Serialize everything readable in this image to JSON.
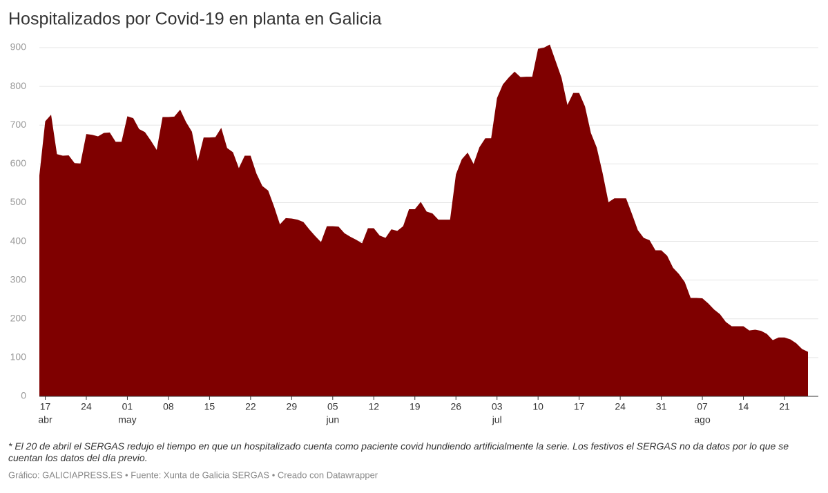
{
  "chart_data": {
    "type": "area",
    "title": "Hospitalizados por Covid-19 en planta en Galicia",
    "note": "* El 20 de abril el SERGAS redujo el tiempo en que un hospitalizado cuenta como paciente covid hundiendo artificialmente la serie. Los festivos el SERGAS no da datos por lo que se cuentan los datos del día previo.",
    "credit": "Gráfico: GALICIAPRESS.ES • Fuente: Xunta de Galicia SERGAS • Creado con Datawrapper",
    "color": "#7f0000",
    "ylim": [
      0,
      900
    ],
    "yticks": [
      0,
      100,
      200,
      300,
      400,
      500,
      600,
      700,
      800,
      900
    ],
    "grid": true,
    "categories": [
      null,
      "17",
      null,
      null,
      null,
      null,
      null,
      null,
      "24",
      null,
      null,
      null,
      null,
      null,
      null,
      "01",
      null,
      null,
      null,
      null,
      null,
      null,
      "08",
      null,
      null,
      null,
      null,
      null,
      null,
      "15",
      null,
      null,
      null,
      null,
      null,
      null,
      "22",
      null,
      null,
      null,
      null,
      null,
      null,
      "29",
      null,
      null,
      null,
      null,
      null,
      null,
      "05",
      null,
      null,
      null,
      null,
      null,
      null,
      "12",
      null,
      null,
      null,
      null,
      null,
      null,
      "19",
      null,
      null,
      null,
      null,
      null,
      null,
      "26",
      null,
      null,
      null,
      null,
      null,
      null,
      "03",
      null,
      null,
      null,
      null,
      null,
      null,
      "10",
      null,
      null,
      null,
      null,
      null,
      null,
      "17",
      null,
      null,
      null,
      null,
      null,
      null,
      "24",
      null,
      null,
      null,
      null,
      null,
      null,
      "31",
      null,
      null,
      null,
      null,
      null,
      null,
      "07",
      null,
      null,
      null,
      null,
      null,
      null,
      "14",
      null,
      null,
      null,
      null,
      null,
      null,
      "21",
      null,
      null,
      null,
      null
    ],
    "months": [
      null,
      "abr",
      null,
      null,
      null,
      null,
      null,
      null,
      null,
      null,
      null,
      null,
      null,
      null,
      null,
      "may",
      null,
      null,
      null,
      null,
      null,
      null,
      null,
      null,
      null,
      null,
      null,
      null,
      null,
      null,
      null,
      null,
      null,
      null,
      null,
      null,
      null,
      null,
      null,
      null,
      null,
      null,
      null,
      null,
      null,
      null,
      null,
      null,
      null,
      null,
      "jun",
      null,
      null,
      null,
      null,
      null,
      null,
      null,
      null,
      null,
      null,
      null,
      null,
      null,
      null,
      null,
      null,
      null,
      null,
      null,
      null,
      null,
      null,
      null,
      null,
      null,
      null,
      null,
      "jul",
      null,
      null,
      null,
      null,
      null,
      null,
      null,
      null,
      null,
      null,
      null,
      null,
      null,
      null,
      null,
      null,
      null,
      null,
      null,
      null,
      null,
      null,
      null,
      null,
      null,
      null,
      null,
      null,
      null,
      null,
      null,
      null,
      null,
      null,
      "ago",
      null,
      null,
      null,
      null,
      null,
      null,
      null,
      null,
      null,
      null,
      null,
      null,
      null,
      null,
      null,
      null,
      null,
      null
    ],
    "values": [
      570,
      710,
      727,
      625,
      621,
      622,
      602,
      601,
      677,
      675,
      671,
      680,
      681,
      657,
      657,
      723,
      718,
      690,
      682,
      660,
      636,
      721,
      721,
      722,
      740,
      708,
      683,
      607,
      668,
      668,
      669,
      693,
      641,
      630,
      589,
      621,
      621,
      575,
      543,
      531,
      490,
      444,
      460,
      459,
      456,
      450,
      431,
      414,
      398,
      439,
      439,
      438,
      421,
      412,
      404,
      395,
      434,
      434,
      415,
      409,
      431,
      427,
      439,
      483,
      483,
      502,
      477,
      472,
      456,
      456,
      456,
      573,
      612,
      629,
      600,
      643,
      666,
      666,
      770,
      805,
      823,
      838,
      824,
      825,
      825,
      897,
      900,
      908,
      865,
      822,
      752,
      783,
      783,
      748,
      680,
      642,
      576,
      501,
      511,
      511,
      511,
      471,
      429,
      409,
      403,
      377,
      377,
      363,
      332,
      316,
      295,
      254,
      254,
      253,
      240,
      224,
      212,
      192,
      181,
      181,
      181,
      170,
      172,
      169,
      161,
      145,
      152,
      152,
      147,
      137,
      122,
      115
    ]
  }
}
